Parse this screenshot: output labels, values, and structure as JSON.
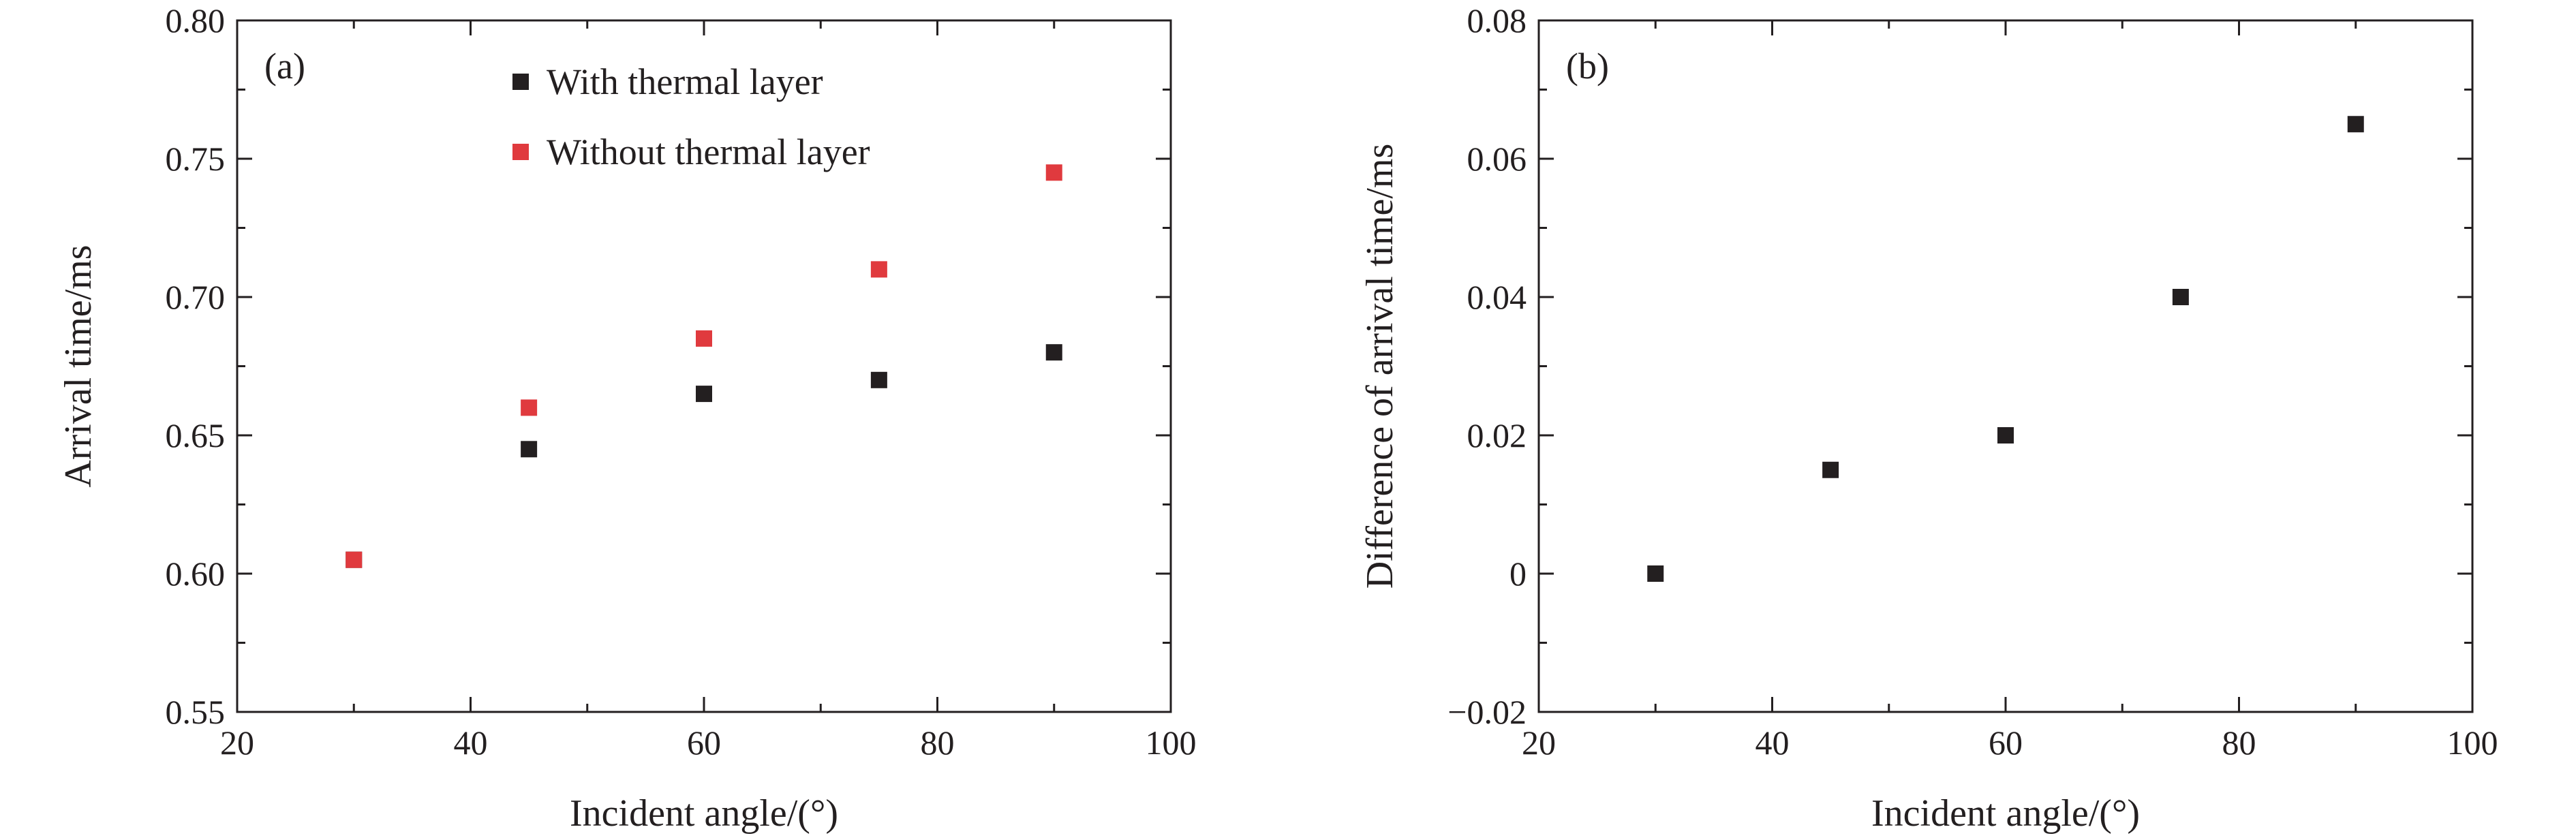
{
  "chart_data": [
    {
      "type": "scatter",
      "panel_label": "(a)",
      "xlabel": "Incident angle/(°)",
      "ylabel": "Arrival time/ms",
      "xlim": [
        20,
        100
      ],
      "ylim": [
        0.55,
        0.8
      ],
      "x_ticks": [
        "20",
        "40",
        "60",
        "80",
        "100"
      ],
      "y_ticks": [
        "0.55",
        "0.60",
        "0.65",
        "0.70",
        "0.75",
        "0.80"
      ],
      "grid": false,
      "legend_position": "top-center",
      "series": [
        {
          "name": "With thermal layer",
          "color": "#231f20",
          "marker": "square",
          "x": [
            30,
            45,
            60,
            75,
            90
          ],
          "y": [
            0.605,
            0.645,
            0.665,
            0.67,
            0.68
          ]
        },
        {
          "name": "Without thermal layer",
          "color": "#e03a3e",
          "marker": "square",
          "x": [
            30,
            45,
            60,
            75,
            90
          ],
          "y": [
            0.605,
            0.66,
            0.685,
            0.71,
            0.745
          ]
        }
      ]
    },
    {
      "type": "scatter",
      "panel_label": "(b)",
      "xlabel": "Incident angle/(°)",
      "ylabel": "Difference of arrival time/ms",
      "xlim": [
        20,
        100
      ],
      "ylim": [
        -0.02,
        0.08
      ],
      "x_ticks": [
        "20",
        "40",
        "60",
        "80",
        "100"
      ],
      "y_ticks": [
        "−0.02",
        "0",
        "0.02",
        "0.04",
        "0.06",
        "0.08"
      ],
      "grid": false,
      "series": [
        {
          "color": "#231f20",
          "marker": "square",
          "x": [
            30,
            45,
            60,
            75,
            90
          ],
          "y": [
            0.0,
            0.015,
            0.02,
            0.04,
            0.065
          ]
        }
      ]
    }
  ]
}
